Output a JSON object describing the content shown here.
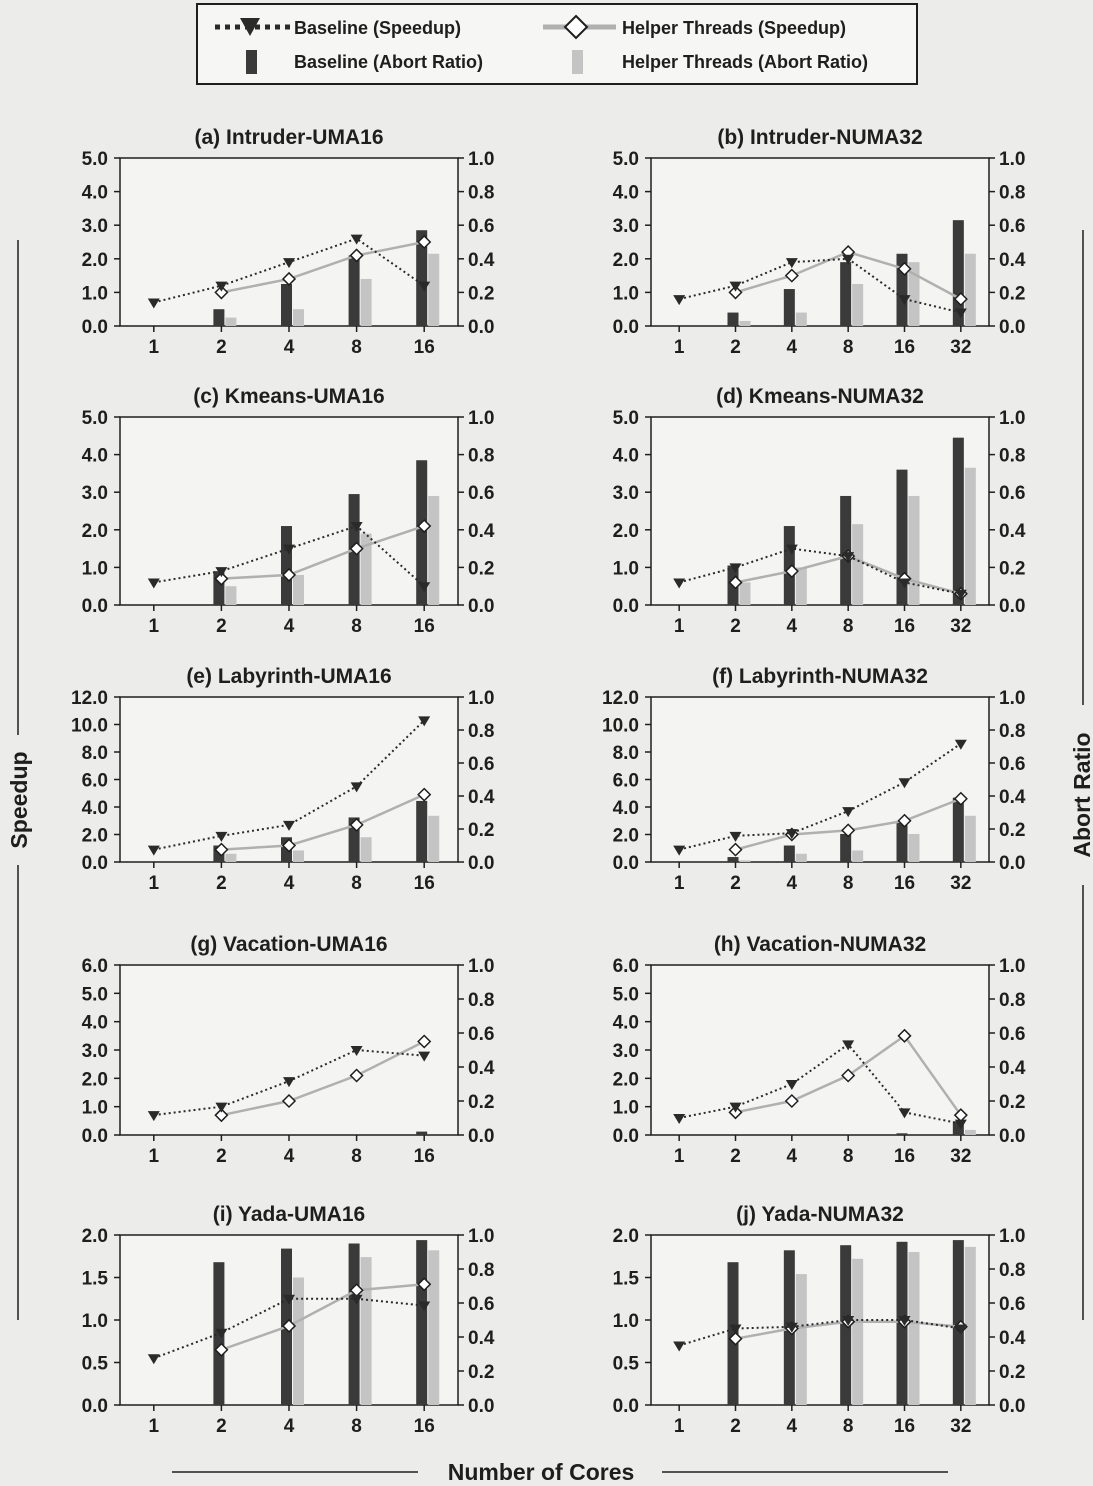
{
  "legend": {
    "baseline_speedup": "Baseline (Speedup)",
    "helper_speedup": "Helper Threads (Speedup)",
    "baseline_abort": "Baseline (Abort Ratio)",
    "helper_abort": "Helper Threads (Abort Ratio)"
  },
  "axes": {
    "ylabel_left": "Speedup",
    "ylabel_right": "Abort Ratio",
    "xlabel": "Number of Cores"
  },
  "colors": {
    "baseline_bar": "#3a3a3a",
    "helper_bar": "#c4c4c4",
    "baseline_line": "#2a2a2a",
    "helper_line": "#b0b0b0",
    "background": "#ececea"
  },
  "chart_data": [
    {
      "type": "bar",
      "title": "(a) Intruder-UMA16",
      "categories": [
        "1",
        "2",
        "4",
        "8",
        "16"
      ],
      "ylim": [
        0,
        5.0
      ],
      "yticks": [
        "0.0",
        "1.0",
        "2.0",
        "3.0",
        "4.0",
        "5.0"
      ],
      "y2lim": [
        0,
        1.0
      ],
      "y2ticks": [
        "0.0",
        "0.2",
        "0.4",
        "0.6",
        "0.8",
        "1.0"
      ],
      "series": [
        {
          "name": "Baseline (Speedup)",
          "axis": "left",
          "values": [
            0.7,
            1.2,
            1.9,
            2.6,
            1.2
          ]
        },
        {
          "name": "Helper Threads (Speedup)",
          "axis": "left",
          "values": [
            null,
            1.0,
            1.4,
            2.1,
            2.5
          ]
        },
        {
          "name": "Baseline (Abort Ratio)",
          "axis": "right",
          "values": [
            0,
            0.1,
            0.25,
            0.42,
            0.57
          ]
        },
        {
          "name": "Helper Threads (Abort Ratio)",
          "axis": "right",
          "values": [
            0,
            0.05,
            0.1,
            0.28,
            0.43
          ]
        }
      ]
    },
    {
      "type": "bar",
      "title": "(b) Intruder-NUMA32",
      "categories": [
        "1",
        "2",
        "4",
        "8",
        "16",
        "32"
      ],
      "ylim": [
        0,
        5.0
      ],
      "yticks": [
        "0.0",
        "1.0",
        "2.0",
        "3.0",
        "4.0",
        "5.0"
      ],
      "y2lim": [
        0,
        1.0
      ],
      "y2ticks": [
        "0.0",
        "0.2",
        "0.4",
        "0.6",
        "0.8",
        "1.0"
      ],
      "series": [
        {
          "name": "Baseline (Speedup)",
          "axis": "left",
          "values": [
            0.8,
            1.2,
            1.9,
            2.0,
            0.8,
            0.4
          ]
        },
        {
          "name": "Helper Threads (Speedup)",
          "axis": "left",
          "values": [
            null,
            1.0,
            1.5,
            2.2,
            1.7,
            0.8
          ]
        },
        {
          "name": "Baseline (Abort Ratio)",
          "axis": "right",
          "values": [
            0,
            0.08,
            0.22,
            0.38,
            0.43,
            0.63
          ]
        },
        {
          "name": "Helper Threads (Abort Ratio)",
          "axis": "right",
          "values": [
            0,
            0.03,
            0.08,
            0.25,
            0.38,
            0.43
          ]
        }
      ]
    },
    {
      "type": "bar",
      "title": "(c) Kmeans-UMA16",
      "categories": [
        "1",
        "2",
        "4",
        "8",
        "16"
      ],
      "ylim": [
        0,
        5.0
      ],
      "yticks": [
        "0.0",
        "1.0",
        "2.0",
        "3.0",
        "4.0",
        "5.0"
      ],
      "y2lim": [
        0,
        1.0
      ],
      "y2ticks": [
        "0.0",
        "0.2",
        "0.4",
        "0.6",
        "0.8",
        "1.0"
      ],
      "series": [
        {
          "name": "Baseline (Speedup)",
          "axis": "left",
          "values": [
            0.6,
            0.9,
            1.5,
            2.1,
            0.5
          ]
        },
        {
          "name": "Helper Threads (Speedup)",
          "axis": "left",
          "values": [
            null,
            0.7,
            0.8,
            1.5,
            2.1
          ]
        },
        {
          "name": "Baseline (Abort Ratio)",
          "axis": "right",
          "values": [
            0,
            0.18,
            0.42,
            0.59,
            0.77
          ]
        },
        {
          "name": "Helper Threads (Abort Ratio)",
          "axis": "right",
          "values": [
            0,
            0.1,
            0.16,
            0.38,
            0.58
          ]
        }
      ]
    },
    {
      "type": "bar",
      "title": "(d) Kmeans-NUMA32",
      "categories": [
        "1",
        "2",
        "4",
        "8",
        "16",
        "32"
      ],
      "ylim": [
        0,
        5.0
      ],
      "yticks": [
        "0.0",
        "1.0",
        "2.0",
        "3.0",
        "4.0",
        "5.0"
      ],
      "y2lim": [
        0,
        1.0
      ],
      "y2ticks": [
        "0.0",
        "0.2",
        "0.4",
        "0.6",
        "0.8",
        "1.0"
      ],
      "series": [
        {
          "name": "Baseline (Speedup)",
          "axis": "left",
          "values": [
            0.6,
            1.0,
            1.5,
            1.3,
            0.6,
            0.3
          ]
        },
        {
          "name": "Helper Threads (Speedup)",
          "axis": "left",
          "values": [
            null,
            0.6,
            0.9,
            1.3,
            0.7,
            0.3
          ]
        },
        {
          "name": "Baseline (Abort Ratio)",
          "axis": "right",
          "values": [
            0,
            0.21,
            0.42,
            0.58,
            0.72,
            0.89
          ]
        },
        {
          "name": "Helper Threads (Abort Ratio)",
          "axis": "right",
          "values": [
            0,
            0.12,
            0.2,
            0.43,
            0.58,
            0.73
          ]
        }
      ]
    },
    {
      "type": "bar",
      "title": "(e) Labyrinth-UMA16",
      "categories": [
        "1",
        "2",
        "4",
        "8",
        "16"
      ],
      "ylim": [
        0,
        12.0
      ],
      "yticks": [
        "0.0",
        "2.0",
        "4.0",
        "6.0",
        "8.0",
        "10.0",
        "12.0"
      ],
      "y2lim": [
        0,
        1.0
      ],
      "y2ticks": [
        "0.0",
        "0.2",
        "0.4",
        "0.6",
        "0.8",
        "1.0"
      ],
      "series": [
        {
          "name": "Baseline (Speedup)",
          "axis": "left",
          "values": [
            0.9,
            1.9,
            2.7,
            5.5,
            10.3
          ]
        },
        {
          "name": "Helper Threads (Speedup)",
          "axis": "left",
          "values": [
            null,
            0.9,
            1.2,
            2.7,
            4.9
          ]
        },
        {
          "name": "Baseline (Abort Ratio)",
          "axis": "right",
          "values": [
            0,
            0.1,
            0.15,
            0.27,
            0.37
          ]
        },
        {
          "name": "Helper Threads (Abort Ratio)",
          "axis": "right",
          "values": [
            0,
            0.05,
            0.07,
            0.15,
            0.28
          ]
        }
      ]
    },
    {
      "type": "bar",
      "title": "(f) Labyrinth-NUMA32",
      "categories": [
        "1",
        "2",
        "4",
        "8",
        "16",
        "32"
      ],
      "ylim": [
        0,
        12.0
      ],
      "yticks": [
        "0.0",
        "2.0",
        "4.0",
        "6.0",
        "8.0",
        "10.0",
        "12.0"
      ],
      "y2lim": [
        0,
        1.0
      ],
      "y2ticks": [
        "0.0",
        "0.2",
        "0.4",
        "0.6",
        "0.8",
        "1.0"
      ],
      "series": [
        {
          "name": "Baseline (Speedup)",
          "axis": "left",
          "values": [
            0.9,
            1.9,
            2.1,
            3.7,
            5.8,
            8.6
          ]
        },
        {
          "name": "Helper Threads (Speedup)",
          "axis": "left",
          "values": [
            null,
            0.9,
            2.0,
            2.3,
            3.0,
            4.6
          ]
        },
        {
          "name": "Baseline (Abort Ratio)",
          "axis": "right",
          "values": [
            0,
            0.03,
            0.1,
            0.17,
            0.24,
            0.39
          ]
        },
        {
          "name": "Helper Threads (Abort Ratio)",
          "axis": "right",
          "values": [
            0,
            0.01,
            0.05,
            0.07,
            0.17,
            0.28
          ]
        }
      ]
    },
    {
      "type": "bar",
      "title": "(g) Vacation-UMA16",
      "categories": [
        "1",
        "2",
        "4",
        "8",
        "16"
      ],
      "ylim": [
        0,
        6.0
      ],
      "yticks": [
        "0.0",
        "1.0",
        "2.0",
        "3.0",
        "4.0",
        "5.0",
        "6.0"
      ],
      "y2lim": [
        0,
        1.0
      ],
      "y2ticks": [
        "0.0",
        "0.2",
        "0.4",
        "0.6",
        "0.8",
        "1.0"
      ],
      "series": [
        {
          "name": "Baseline (Speedup)",
          "axis": "left",
          "values": [
            0.7,
            1.0,
            1.9,
            3.0,
            2.8
          ]
        },
        {
          "name": "Helper Threads (Speedup)",
          "axis": "left",
          "values": [
            null,
            0.7,
            1.2,
            2.1,
            3.3
          ]
        },
        {
          "name": "Baseline (Abort Ratio)",
          "axis": "right",
          "values": [
            0,
            0,
            0,
            0,
            0.02
          ]
        },
        {
          "name": "Helper Threads (Abort Ratio)",
          "axis": "right",
          "values": [
            0,
            0,
            0,
            0,
            0
          ]
        }
      ]
    },
    {
      "type": "bar",
      "title": "(h) Vacation-NUMA32",
      "categories": [
        "1",
        "2",
        "4",
        "8",
        "16",
        "32"
      ],
      "ylim": [
        0,
        6.0
      ],
      "yticks": [
        "0.0",
        "1.0",
        "2.0",
        "3.0",
        "4.0",
        "5.0",
        "6.0"
      ],
      "y2lim": [
        0,
        1.0
      ],
      "y2ticks": [
        "0.0",
        "0.2",
        "0.4",
        "0.6",
        "0.8",
        "1.0"
      ],
      "series": [
        {
          "name": "Baseline (Speedup)",
          "axis": "left",
          "values": [
            0.6,
            1.0,
            1.8,
            3.2,
            0.8,
            0.4
          ]
        },
        {
          "name": "Helper Threads (Speedup)",
          "axis": "left",
          "values": [
            null,
            0.8,
            1.2,
            2.1,
            3.5,
            0.7
          ]
        },
        {
          "name": "Baseline (Abort Ratio)",
          "axis": "right",
          "values": [
            0,
            0,
            0,
            0,
            0.01,
            0.08
          ]
        },
        {
          "name": "Helper Threads (Abort Ratio)",
          "axis": "right",
          "values": [
            0,
            0,
            0,
            0,
            0,
            0.03
          ]
        }
      ]
    },
    {
      "type": "bar",
      "title": "(i) Yada-UMA16",
      "categories": [
        "1",
        "2",
        "4",
        "8",
        "16"
      ],
      "ylim": [
        0,
        2.0
      ],
      "yticks": [
        "0.0",
        "0.5",
        "1.0",
        "1.5",
        "2.0"
      ],
      "y2lim": [
        0,
        1.0
      ],
      "y2ticks": [
        "0.0",
        "0.2",
        "0.4",
        "0.6",
        "0.8",
        "1.0"
      ],
      "series": [
        {
          "name": "Baseline (Speedup)",
          "axis": "left",
          "values": [
            0.55,
            0.85,
            1.25,
            1.25,
            1.17
          ]
        },
        {
          "name": "Helper Threads (Speedup)",
          "axis": "left",
          "values": [
            null,
            0.65,
            0.93,
            1.35,
            1.42
          ]
        },
        {
          "name": "Baseline (Abort Ratio)",
          "axis": "right",
          "values": [
            0,
            0.84,
            0.92,
            0.95,
            0.97
          ]
        },
        {
          "name": "Helper Threads (Abort Ratio)",
          "axis": "right",
          "values": [
            0,
            0,
            0.75,
            0.87,
            0.91
          ]
        }
      ]
    },
    {
      "type": "bar",
      "title": "(j) Yada-NUMA32",
      "categories": [
        "1",
        "2",
        "4",
        "8",
        "16",
        "32"
      ],
      "ylim": [
        0,
        2.0
      ],
      "yticks": [
        "0.0",
        "0.5",
        "1.0",
        "1.5",
        "2.0"
      ],
      "y2lim": [
        0,
        1.0
      ],
      "y2ticks": [
        "0.0",
        "0.2",
        "0.4",
        "0.6",
        "0.8",
        "1.0"
      ],
      "series": [
        {
          "name": "Baseline (Speedup)",
          "axis": "left",
          "values": [
            0.7,
            0.9,
            0.92,
            1.0,
            1.0,
            0.9
          ]
        },
        {
          "name": "Helper Threads (Speedup)",
          "axis": "left",
          "values": [
            null,
            0.78,
            0.9,
            0.98,
            0.98,
            0.92
          ]
        },
        {
          "name": "Baseline (Abort Ratio)",
          "axis": "right",
          "values": [
            0,
            0.84,
            0.91,
            0.94,
            0.96,
            0.97
          ]
        },
        {
          "name": "Helper Threads (Abort Ratio)",
          "axis": "right",
          "values": [
            0,
            0,
            0.77,
            0.86,
            0.9,
            0.93
          ]
        }
      ]
    }
  ]
}
